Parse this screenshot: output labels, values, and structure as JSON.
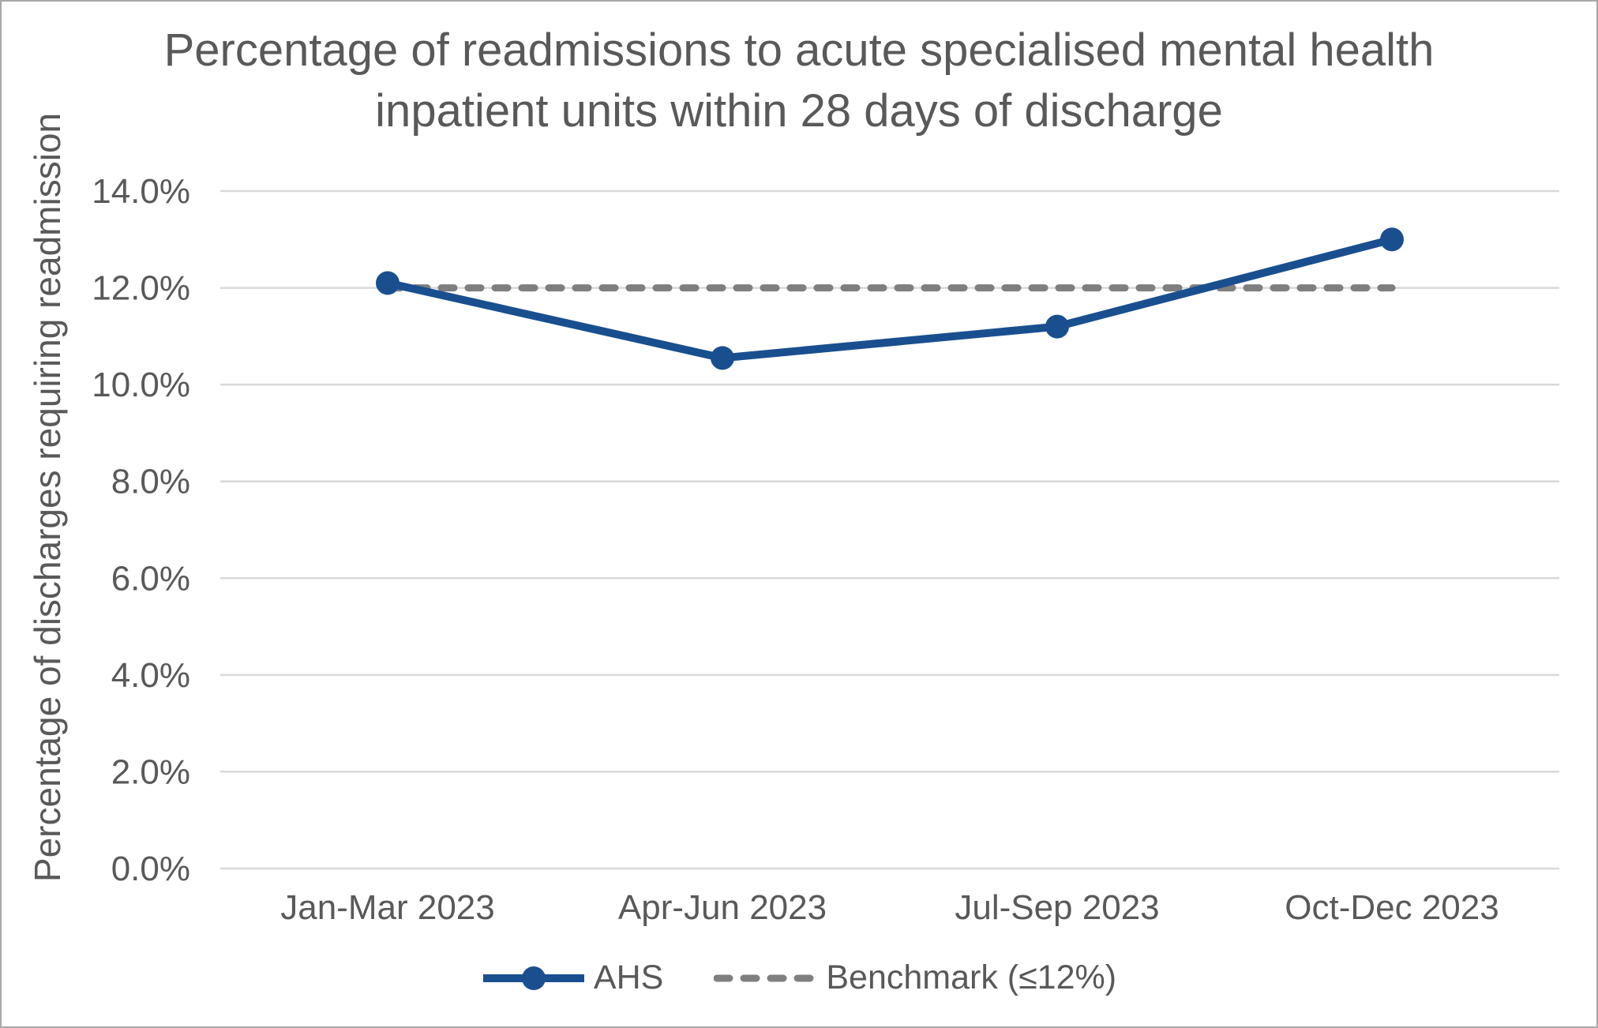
{
  "title": "Percentage of readmissions to acute specialised mental health inpatient units within 28 days of discharge",
  "y_axis": {
    "label": "Percentage of discharges requiring readmission",
    "tick_labels": [
      "0.0%",
      "2.0%",
      "4.0%",
      "6.0%",
      "8.0%",
      "10.0%",
      "12.0%",
      "14.0%"
    ]
  },
  "x_axis": {
    "tick_labels": [
      "Jan-Mar 2023",
      "Apr-Jun 2023",
      "Jul-Sep 2023",
      "Oct-Dec 2023"
    ]
  },
  "legend": {
    "ahs_label": "AHS",
    "benchmark_label": "Benchmark (≤12%)"
  },
  "chart_data": {
    "type": "line",
    "title": "Percentage of readmissions to acute specialised mental health inpatient units within 28 days of discharge",
    "categories": [
      "Jan-Mar 2023",
      "Apr-Jun 2023",
      "Jul-Sep 2023",
      "Oct-Dec 2023"
    ],
    "series": [
      {
        "name": "AHS",
        "values": [
          12.1,
          10.55,
          11.2,
          13.0
        ],
        "style": "solid-markers"
      },
      {
        "name": "Benchmark (≤12%)",
        "values": [
          12.0,
          12.0,
          12.0,
          12.0
        ],
        "style": "dashed"
      }
    ],
    "xlabel": "",
    "ylabel": "Percentage of discharges requiring readmission",
    "ylim": [
      0,
      14
    ],
    "ytick_step": 2,
    "ytick_format": "percent_1dp",
    "grid": true,
    "legend_position": "bottom"
  },
  "colors": {
    "series_blue": "#1a4f8f",
    "benchmark_gray": "#7f7f7f",
    "gridline": "#d9d9d9",
    "text": "#595959",
    "border": "#a9a9a9"
  }
}
